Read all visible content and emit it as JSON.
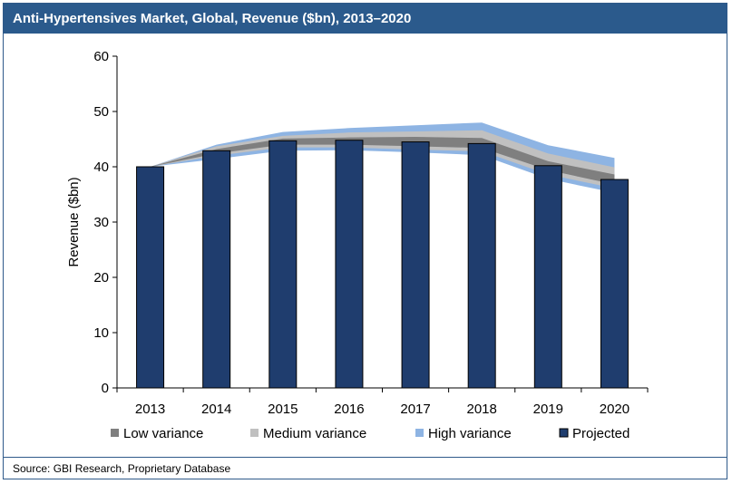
{
  "title": "Anti-Hypertensives Market, Global, Revenue ($bn), 2013–2020",
  "source": "Source: GBI Research, Proprietary Database",
  "colors": {
    "projected": "#1f3d6e",
    "low": "#7f7f7f",
    "medium": "#c0c0c0",
    "high": "#8eb4e3",
    "title_bg": "#2b5a8c"
  },
  "chart_data": {
    "type": "bar",
    "title": "Anti-Hypertensives Market, Global, Revenue ($bn), 2013–2020",
    "categories": [
      "2013",
      "2014",
      "2015",
      "2016",
      "2017",
      "2018",
      "2019",
      "2020"
    ],
    "ylabel": "Revenue ($bn)",
    "xlabel": "",
    "ylim": [
      0,
      60
    ],
    "yticks": [
      "0",
      "10",
      "20",
      "30",
      "40",
      "50",
      "60"
    ],
    "grid": false,
    "legend_position": "bottom",
    "series": [
      {
        "name": "Projected",
        "values": [
          40.0,
          42.9,
          44.7,
          44.8,
          44.5,
          44.2,
          40.2,
          37.7
        ]
      }
    ],
    "bands": [
      {
        "name": "Low variance",
        "lower": [
          40.0,
          42.4,
          44.0,
          44.0,
          43.7,
          43.4,
          39.4,
          36.8
        ],
        "upper": [
          40.0,
          43.2,
          45.1,
          45.3,
          45.4,
          45.2,
          41.0,
          38.6
        ]
      },
      {
        "name": "Medium variance",
        "lower": [
          40.0,
          42.0,
          43.5,
          43.5,
          43.1,
          42.8,
          38.6,
          36.1
        ],
        "upper": [
          40.0,
          43.7,
          45.6,
          46.2,
          46.4,
          46.6,
          42.4,
          39.9
        ]
      },
      {
        "name": "High variance",
        "lower": [
          40.0,
          41.4,
          42.9,
          43.0,
          42.6,
          42.1,
          37.8,
          35.3
        ],
        "upper": [
          40.0,
          44.0,
          46.3,
          47.0,
          47.5,
          48.0,
          43.9,
          41.6
        ]
      }
    ],
    "legend": [
      "Low variance",
      "Medium variance",
      "High variance",
      "Projected"
    ]
  }
}
